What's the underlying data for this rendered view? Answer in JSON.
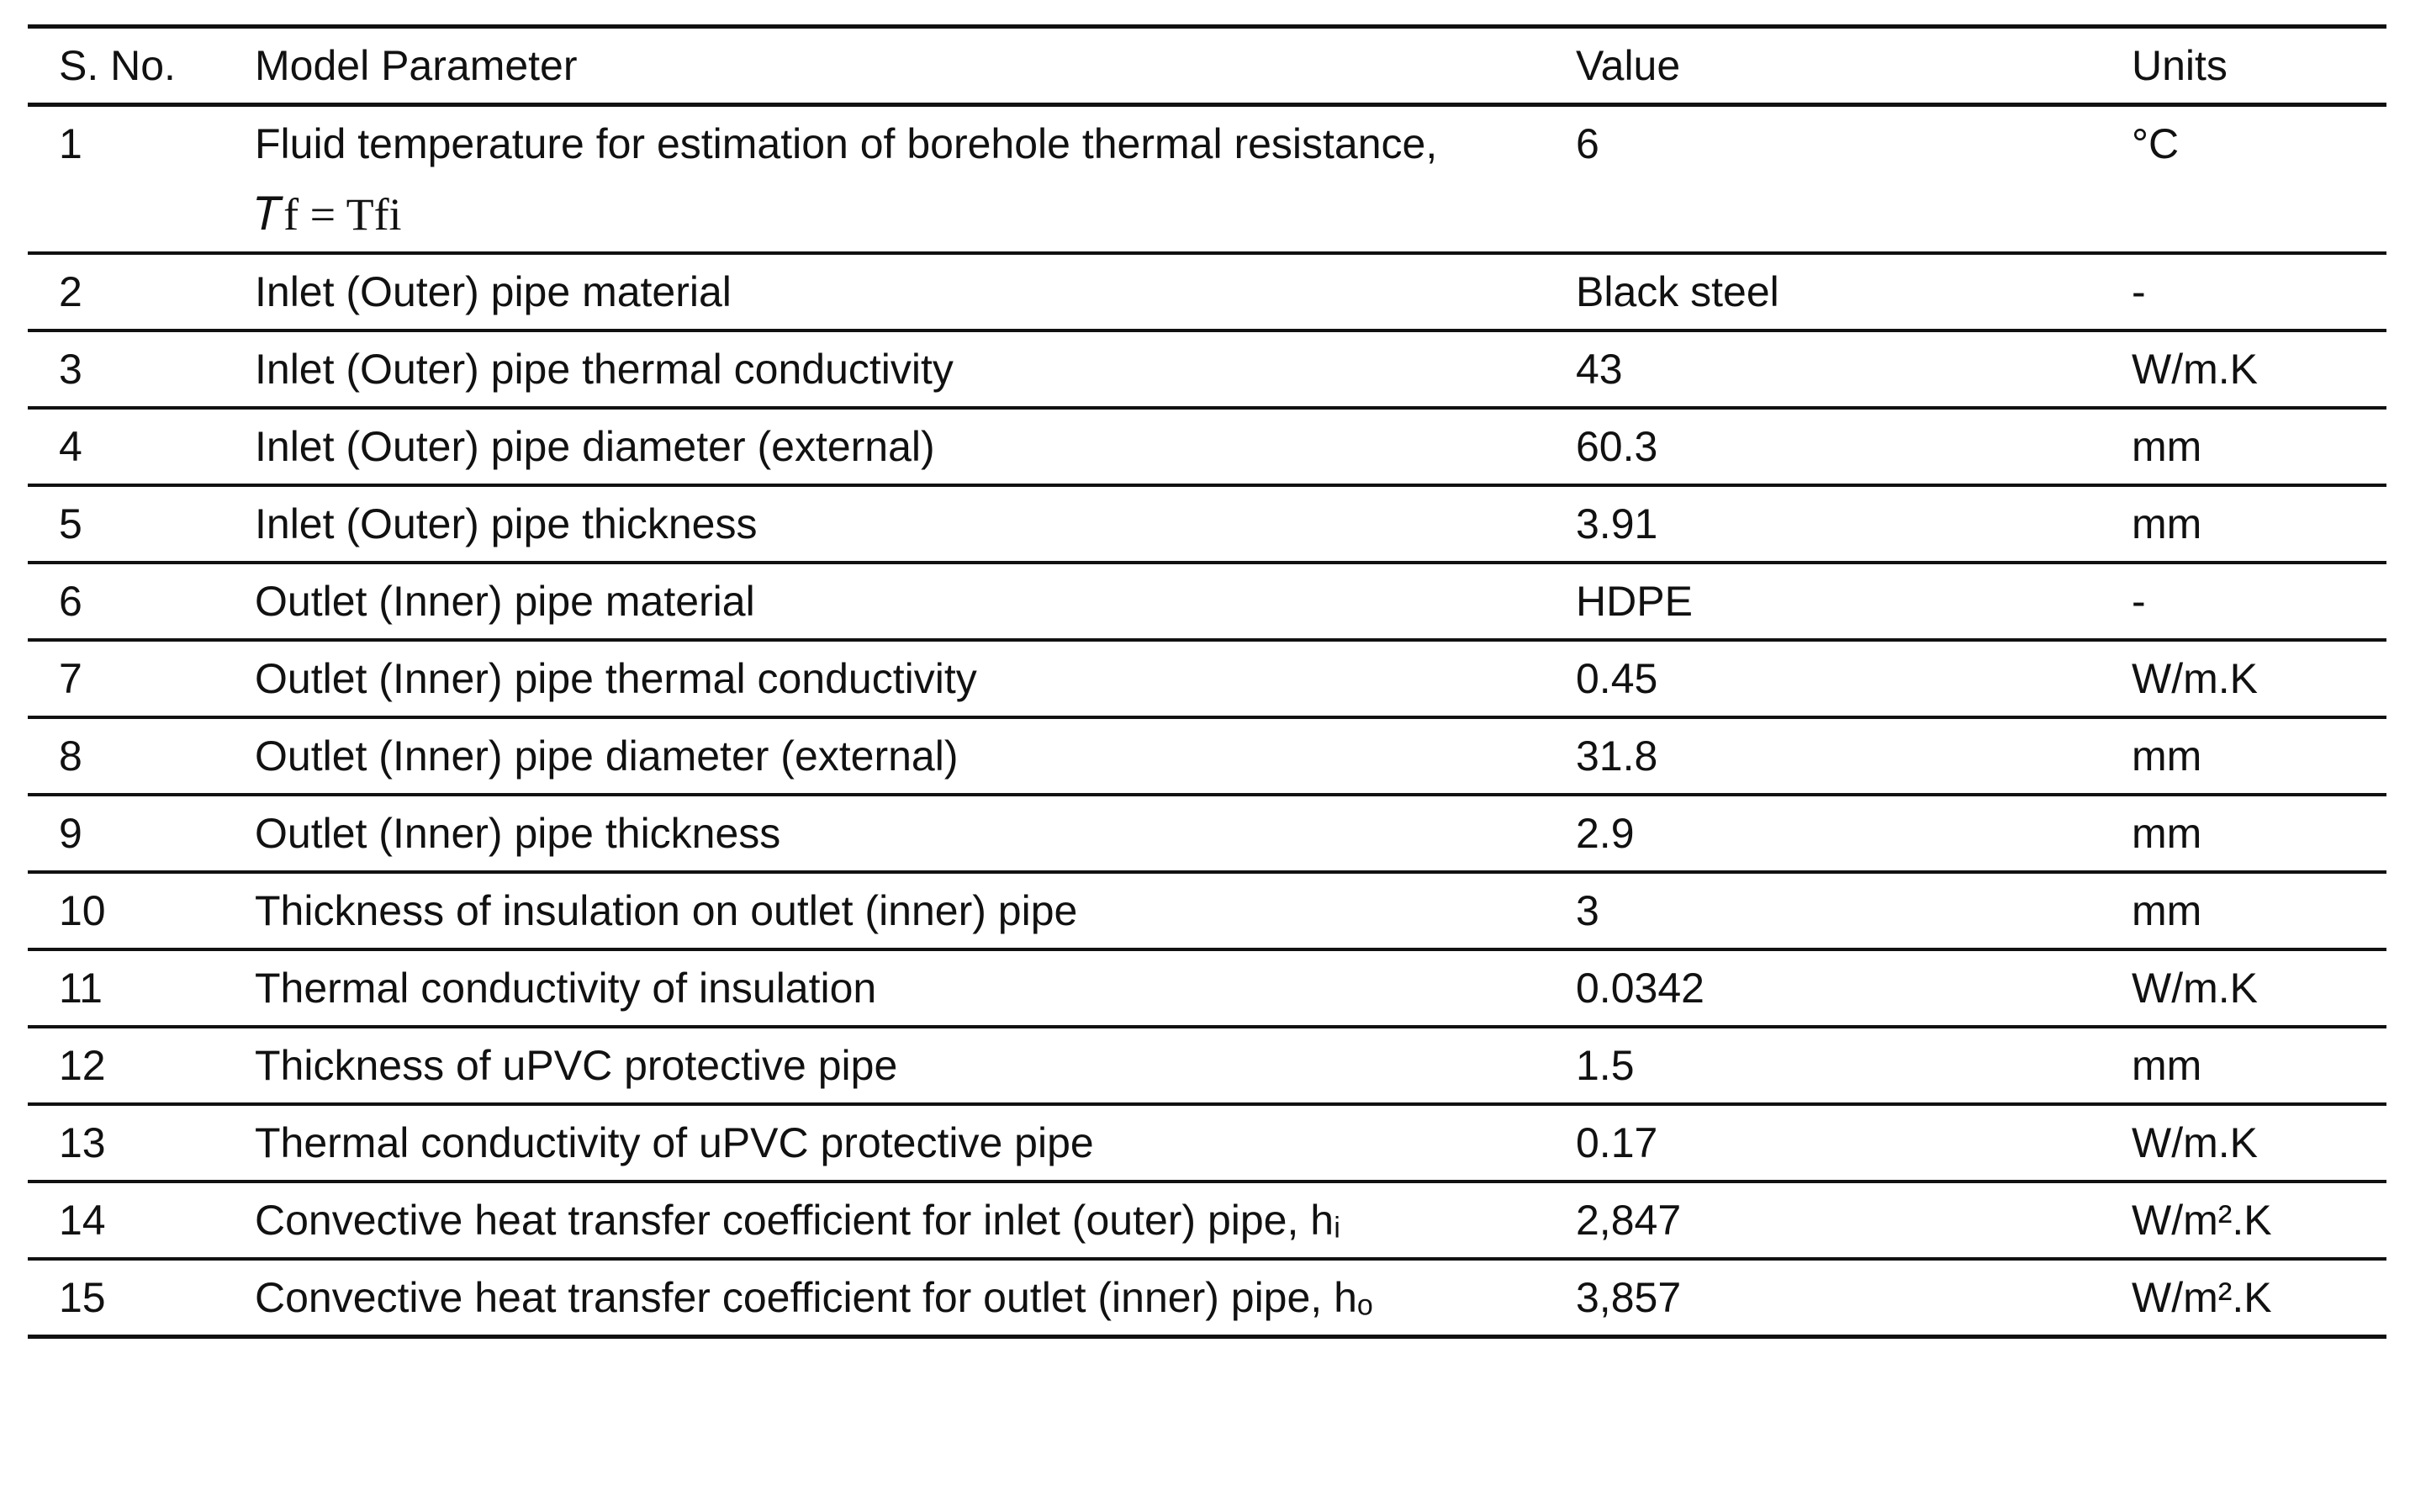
{
  "table": {
    "header": [
      "S. No.",
      "Model Parameter",
      "Value",
      "Units"
    ],
    "rows": [
      [
        "1",
        "Fluid temperature for estimation of borehole thermal resistance,",
        "6",
        "°C"
      ],
      [
        "2",
        "Inlet (Outer) pipe material",
        "Black steel",
        "-"
      ],
      [
        "3",
        "Inlet (Outer) pipe thermal conductivity",
        "43",
        "W/m.K"
      ],
      [
        "4",
        "Inlet (Outer) pipe diameter (external)",
        "60.3",
        "mm"
      ],
      [
        "5",
        "Inlet (Outer) pipe thickness",
        "3.91",
        "mm"
      ],
      [
        "6",
        "Outlet (Inner) pipe material",
        "HDPE",
        "-"
      ],
      [
        "7",
        "Outlet (Inner) pipe thermal conductivity",
        "0.45",
        "W/m.K"
      ],
      [
        "8",
        "Outlet (Inner) pipe diameter (external)",
        "31.8",
        "mm"
      ],
      [
        "9",
        "Outlet (Inner) pipe thickness",
        "2.9",
        "mm"
      ],
      [
        "10",
        "Thickness of insulation on outlet (inner) pipe",
        "3",
        "mm"
      ],
      [
        "11",
        "Thermal conductivity of insulation",
        "0.0342",
        "W/m.K"
      ],
      [
        "12",
        "Thickness of uPVC protective pipe",
        "1.5",
        "mm"
      ],
      [
        "13",
        "Thermal conductivity of uPVC protective pipe",
        "0.17",
        "W/m.K"
      ],
      [
        "14",
        "Convective heat transfer coefficient for inlet (outer) pipe, hᵢ",
        "2,847",
        "W/m².K"
      ],
      [
        "15",
        "Convective heat transfer coefficient for outlet (inner) pipe, hₒ",
        "3,857",
        "W/m².K"
      ]
    ],
    "formula": "𝑇f =  Tfi"
  }
}
